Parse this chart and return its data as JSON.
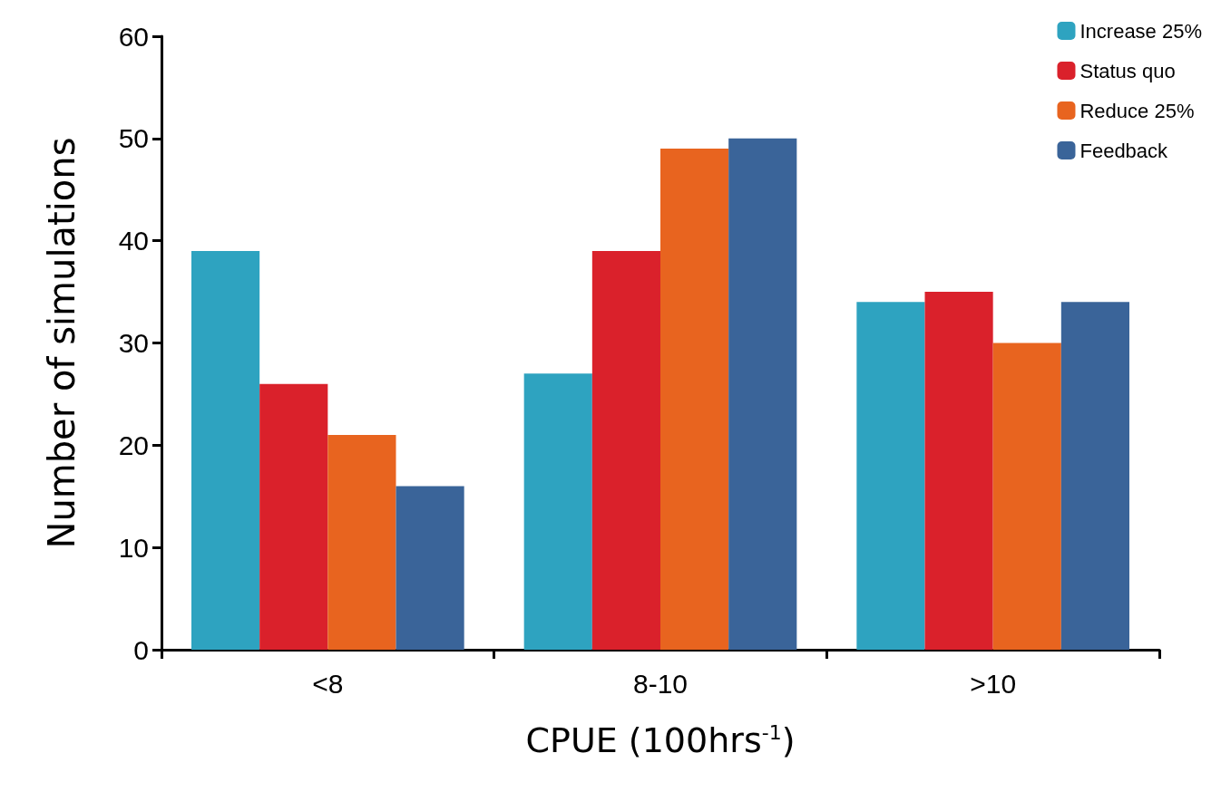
{
  "chart_data": {
    "type": "bar",
    "categories": [
      "<8",
      "8-10",
      ">10"
    ],
    "xlabel": "CPUE (100hrs$^{-1}$)",
    "ylabel": "Number of simulations",
    "series": [
      {
        "name": "Increase 25%",
        "color": "#2ea3c0",
        "values": [
          39,
          27,
          34
        ]
      },
      {
        "name": "Status quo",
        "color": "#da212b",
        "values": [
          26,
          39,
          35
        ]
      },
      {
        "name": "Reduce 25%",
        "color": "#e8641f",
        "values": [
          21,
          49,
          30
        ]
      },
      {
        "name": "Feedback",
        "color": "#3a6499",
        "values": [
          16,
          50,
          34
        ]
      }
    ],
    "ylim": [
      0,
      60
    ],
    "yticks": [
      0,
      10,
      20,
      30,
      40,
      50,
      60
    ],
    "grid": false,
    "legend": "top right"
  }
}
